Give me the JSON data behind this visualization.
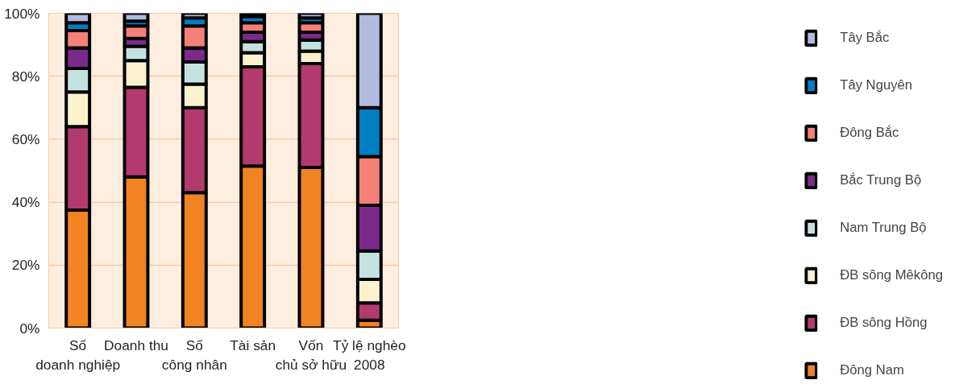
{
  "chart_data": {
    "type": "bar",
    "stacked": true,
    "categories": [
      "Số\ndoanh nghiệp",
      "Doanh thu",
      "Số\ncông nhân",
      "Tài sản",
      "Vốn\nchủ sở hữu",
      "Tỷ lệ nghèo\n2008"
    ],
    "series": [
      {
        "name": "Đông Nam",
        "color": "#f28322",
        "values": [
          37.5,
          48,
          43,
          51.5,
          51,
          2.5
        ]
      },
      {
        "name": "ĐB sông Hồng",
        "color": "#b33a6e",
        "values": [
          26.5,
          28.5,
          27,
          31.5,
          33,
          5.5
        ]
      },
      {
        "name": "ĐB sông Mêkông",
        "color": "#faf1cf",
        "values": [
          11,
          8.5,
          7.5,
          4.5,
          4,
          7.5
        ]
      },
      {
        "name": "Nam Trung Bộ",
        "color": "#c4e3e0",
        "values": [
          7.5,
          4.5,
          7,
          3.5,
          3.5,
          9
        ]
      },
      {
        "name": "Bắc Trung Bộ",
        "color": "#7b2a8a",
        "values": [
          6.5,
          2.5,
          4.5,
          3,
          2.5,
          14.5
        ]
      },
      {
        "name": "Đông Bắc",
        "color": "#f48078",
        "values": [
          5.5,
          4,
          7,
          3,
          3,
          15.5
        ]
      },
      {
        "name": "Tây Nguyên",
        "color": "#007ec4",
        "values": [
          2.5,
          1.5,
          2.5,
          2,
          1.5,
          15.5
        ]
      },
      {
        "name": "Tây Bắc",
        "color": "#b0bbdf",
        "values": [
          3,
          2.5,
          1.5,
          1,
          1.5,
          30
        ]
      }
    ],
    "ylim": [
      0,
      100
    ],
    "yticks": [
      {
        "value": 0,
        "label": "0%"
      },
      {
        "value": 20,
        "label": "20%"
      },
      {
        "value": 40,
        "label": "40%"
      },
      {
        "value": 60,
        "label": "60%"
      },
      {
        "value": 80,
        "label": "80%"
      },
      {
        "value": 100,
        "label": "100%"
      }
    ],
    "grid": "y",
    "legend": "right"
  }
}
